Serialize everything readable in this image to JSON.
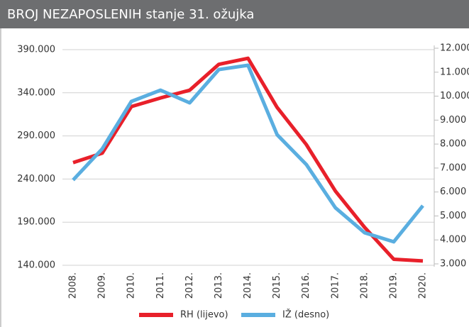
{
  "chart_data": {
    "type": "line",
    "title": "BROJ NEZAPOSLENIH stanje 31. ožujka",
    "categories": [
      "2008.",
      "2009.",
      "2010.",
      "2011.",
      "2012.",
      "2013.",
      "2014.",
      "2015.",
      "2016.",
      "2017.",
      "2018.",
      "2019.",
      "2020."
    ],
    "series": [
      {
        "name": "RH (lijevo)",
        "color": "#e8202a",
        "values": [
          259000,
          270000,
          324000,
          334000,
          343000,
          373000,
          380000,
          323000,
          280000,
          226000,
          184000,
          147000,
          145000
        ]
      },
      {
        "name": "IŽ (desno)",
        "color": "#5aaee0",
        "axis": "y2",
        "values": [
          6500,
          7800,
          9780,
          10250,
          9720,
          11110,
          11290,
          8390,
          7150,
          5340,
          4300,
          3920,
          5430
        ]
      }
    ],
    "ylim": [
      140000,
      390000
    ],
    "yticks": [
      {
        "value": 140000,
        "label": "140.000"
      },
      {
        "value": 190000,
        "label": "190.000"
      },
      {
        "value": 240000,
        "label": "240.000"
      },
      {
        "value": 290000,
        "label": "290.000"
      },
      {
        "value": 340000,
        "label": "340.000"
      },
      {
        "value": 390000,
        "label": "390.000"
      }
    ],
    "y2lim": [
      3000,
      12000
    ],
    "y2ticks": [
      {
        "value": 3000,
        "label": "3.000"
      },
      {
        "value": 4000,
        "label": "4.000"
      },
      {
        "value": 5000,
        "label": "5.000"
      },
      {
        "value": 6000,
        "label": "6.000"
      },
      {
        "value": 7000,
        "label": "7.000"
      },
      {
        "value": 8000,
        "label": "8.000"
      },
      {
        "value": 9000,
        "label": "9.000"
      },
      {
        "value": 10000,
        "label": "10.000"
      },
      {
        "value": 11000,
        "label": "11.000"
      },
      {
        "value": 12000,
        "label": "12.000"
      }
    ],
    "grid": true,
    "legend": "bottom"
  }
}
